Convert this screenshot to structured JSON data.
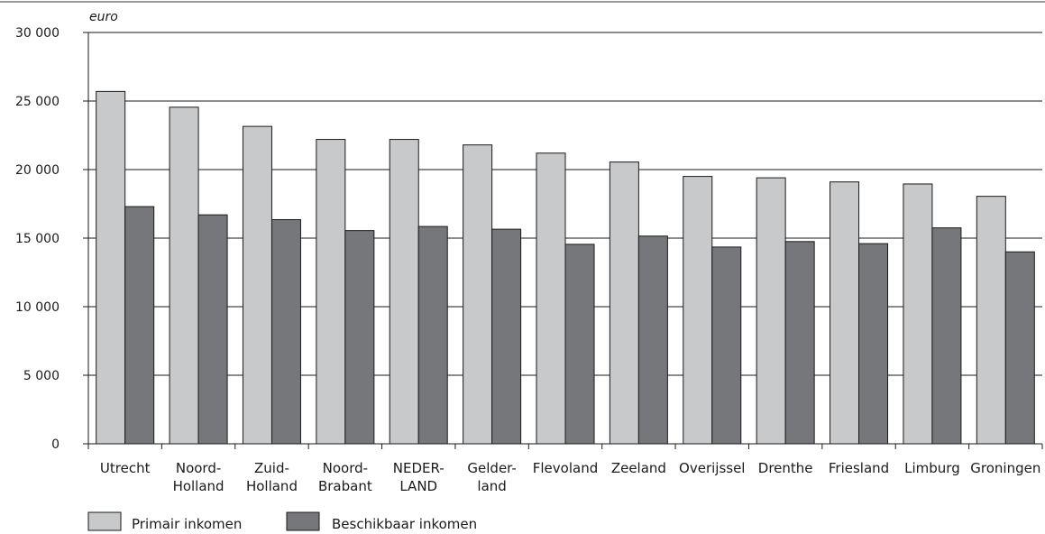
{
  "chart_data": {
    "type": "bar",
    "ylabel": "euro",
    "ylim": [
      0,
      30000
    ],
    "yticks": [
      "0",
      "5 000",
      "10 000",
      "15 000",
      "20 000",
      "25 000",
      "30 000"
    ],
    "ytick_values": [
      0,
      5000,
      10000,
      15000,
      20000,
      25000,
      30000
    ],
    "grid": true,
    "legend_position": "bottom-left",
    "categories": [
      [
        "Utrecht"
      ],
      [
        "Noord-",
        "Holland"
      ],
      [
        "Zuid-",
        "Holland"
      ],
      [
        "Noord-",
        "Brabant"
      ],
      [
        "NEDER-",
        "LAND"
      ],
      [
        "Gelder-",
        "land"
      ],
      [
        "Flevoland"
      ],
      [
        "Zeeland"
      ],
      [
        "Overijssel"
      ],
      [
        "Drenthe"
      ],
      [
        "Friesland"
      ],
      [
        "Limburg"
      ],
      [
        "Groningen"
      ]
    ],
    "series": [
      {
        "name": "Primair inkomen",
        "color": "#c8c9cb",
        "values": [
          25700,
          24550,
          23150,
          22200,
          22200,
          21800,
          21200,
          20550,
          19500,
          19400,
          19100,
          18950,
          18050
        ]
      },
      {
        "name": "Beschikbaar inkomen",
        "color": "#76777b",
        "values": [
          17300,
          16700,
          16350,
          15550,
          15850,
          15650,
          14550,
          15150,
          14350,
          14750,
          14600,
          15750,
          14000
        ]
      }
    ]
  }
}
